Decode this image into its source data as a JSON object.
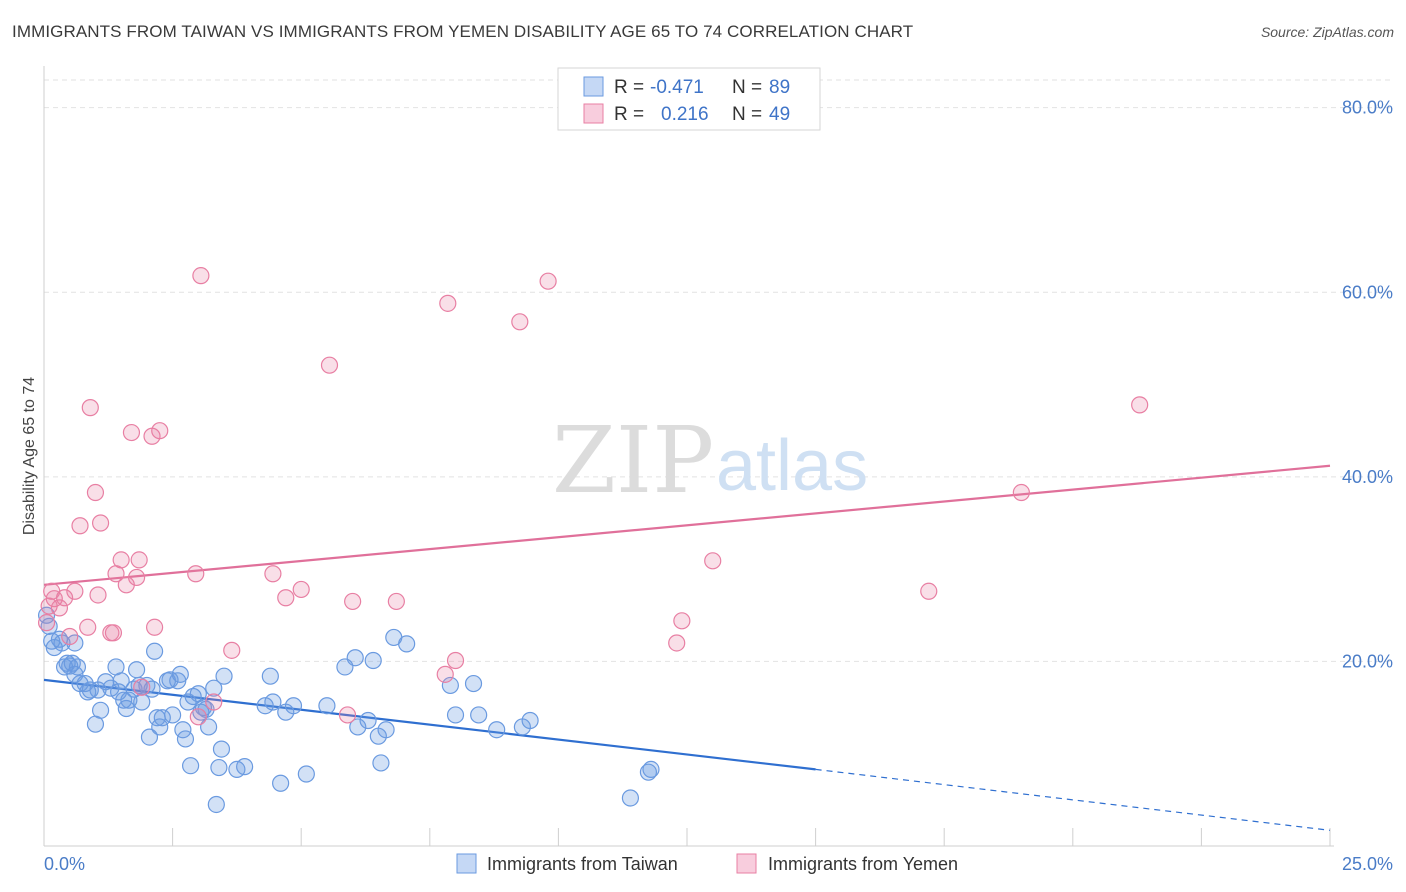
{
  "header": {
    "title": "IMMIGRANTS FROM TAIWAN VS IMMIGRANTS FROM YEMEN DISABILITY AGE 65 TO 74 CORRELATION CHART",
    "source": "Source: ZipAtlas.com"
  },
  "watermark": {
    "zip": "ZIP",
    "atlas": "atlas"
  },
  "legend_top": {
    "rows": [
      {
        "r_label": "R =",
        "r_value": "-0.471",
        "n_label": "N =",
        "n_value": "89",
        "color": "#6a9ae0"
      },
      {
        "r_label": "R =",
        "r_value": "0.216",
        "n_label": "N =",
        "n_value": "49",
        "color": "#e87fa3"
      }
    ]
  },
  "chart_data": {
    "type": "scatter",
    "title": "IMMIGRANTS FROM TAIWAN VS IMMIGRANTS FROM YEMEN DISABILITY AGE 65 TO 74 CORRELATION CHART",
    "xlabel": "",
    "ylabel": "Disability Age 65 to 74",
    "xlim": [
      0,
      25
    ],
    "ylim": [
      0,
      83
    ],
    "x_tick_labels": [
      "0.0%",
      "25.0%"
    ],
    "y_ticks": [
      20,
      40,
      60,
      80
    ],
    "y_tick_labels": [
      "20.0%",
      "40.0%",
      "60.0%",
      "80.0%"
    ],
    "grid": true,
    "legend_position": "bottom",
    "series": [
      {
        "name": "Immigrants from Taiwan",
        "color": "#6a9ae0",
        "line_color": "#2f6fd0",
        "trend": {
          "x": [
            0,
            15
          ],
          "y": [
            18.0,
            8.3
          ],
          "dashed_to": [
            25,
            1.7
          ]
        },
        "points": [
          [
            0.05,
            25.0
          ],
          [
            0.1,
            23.8
          ],
          [
            0.15,
            22.2
          ],
          [
            0.2,
            21.5
          ],
          [
            0.3,
            22.4
          ],
          [
            0.35,
            22.0
          ],
          [
            0.4,
            19.4
          ],
          [
            0.45,
            19.8
          ],
          [
            0.5,
            19.5
          ],
          [
            0.55,
            19.8
          ],
          [
            0.6,
            18.6
          ],
          [
            0.65,
            19.4
          ],
          [
            0.7,
            17.6
          ],
          [
            0.8,
            17.6
          ],
          [
            0.85,
            16.7
          ],
          [
            0.9,
            16.9
          ],
          [
            1.0,
            13.2
          ],
          [
            1.1,
            14.7
          ],
          [
            1.2,
            17.8
          ],
          [
            1.3,
            17.1
          ],
          [
            1.4,
            19.4
          ],
          [
            1.45,
            16.7
          ],
          [
            1.5,
            17.9
          ],
          [
            1.55,
            15.8
          ],
          [
            1.6,
            14.9
          ],
          [
            1.65,
            15.8
          ],
          [
            1.75,
            17.0
          ],
          [
            1.8,
            19.1
          ],
          [
            1.85,
            17.4
          ],
          [
            1.9,
            15.6
          ],
          [
            2.0,
            17.4
          ],
          [
            2.05,
            11.8
          ],
          [
            2.1,
            17.0
          ],
          [
            2.15,
            21.1
          ],
          [
            2.2,
            13.9
          ],
          [
            2.25,
            12.9
          ],
          [
            2.3,
            13.9
          ],
          [
            2.4,
            17.9
          ],
          [
            2.5,
            14.2
          ],
          [
            2.6,
            17.9
          ],
          [
            2.65,
            18.6
          ],
          [
            2.7,
            12.6
          ],
          [
            2.75,
            11.6
          ],
          [
            2.8,
            15.6
          ],
          [
            2.85,
            8.7
          ],
          [
            2.9,
            16.2
          ],
          [
            3.0,
            16.5
          ],
          [
            3.05,
            14.5
          ],
          [
            3.1,
            15.0
          ],
          [
            3.2,
            12.9
          ],
          [
            3.3,
            17.1
          ],
          [
            3.35,
            4.5
          ],
          [
            3.4,
            8.5
          ],
          [
            3.45,
            10.5
          ],
          [
            3.5,
            18.4
          ],
          [
            3.75,
            8.3
          ],
          [
            3.9,
            8.6
          ],
          [
            4.3,
            15.2
          ],
          [
            4.4,
            18.4
          ],
          [
            4.45,
            15.6
          ],
          [
            4.6,
            6.8
          ],
          [
            4.7,
            14.5
          ],
          [
            4.85,
            15.2
          ],
          [
            5.1,
            7.8
          ],
          [
            5.5,
            15.2
          ],
          [
            5.85,
            19.4
          ],
          [
            6.05,
            20.4
          ],
          [
            6.1,
            12.9
          ],
          [
            6.3,
            13.6
          ],
          [
            6.4,
            20.1
          ],
          [
            6.5,
            11.9
          ],
          [
            6.55,
            9.0
          ],
          [
            6.65,
            12.6
          ],
          [
            6.8,
            22.6
          ],
          [
            7.05,
            21.9
          ],
          [
            7.9,
            17.4
          ],
          [
            8.0,
            14.2
          ],
          [
            8.35,
            17.6
          ],
          [
            8.45,
            14.2
          ],
          [
            8.8,
            12.6
          ],
          [
            9.3,
            12.9
          ],
          [
            9.45,
            13.6
          ],
          [
            11.75,
            8.0
          ],
          [
            11.4,
            5.2
          ],
          [
            11.8,
            8.3
          ],
          [
            0.6,
            22.0
          ],
          [
            1.05,
            16.9
          ],
          [
            2.45,
            18.0
          ],
          [
            3.15,
            14.8
          ]
        ]
      },
      {
        "name": "Immigrants from Yemen",
        "color": "#e87fa3",
        "line_color": "#e0709a",
        "trend": {
          "x": [
            0,
            25
          ],
          "y": [
            28.3,
            41.2
          ]
        },
        "points": [
          [
            0.05,
            24.2
          ],
          [
            0.1,
            26.0
          ],
          [
            0.15,
            27.6
          ],
          [
            0.2,
            26.8
          ],
          [
            0.3,
            25.8
          ],
          [
            0.4,
            26.9
          ],
          [
            0.5,
            22.7
          ],
          [
            0.6,
            27.6
          ],
          [
            0.7,
            34.7
          ],
          [
            0.85,
            23.7
          ],
          [
            0.9,
            47.5
          ],
          [
            1.0,
            38.3
          ],
          [
            1.05,
            27.2
          ],
          [
            1.1,
            35.0
          ],
          [
            1.3,
            23.1
          ],
          [
            1.35,
            23.1
          ],
          [
            1.4,
            29.5
          ],
          [
            1.5,
            31.0
          ],
          [
            1.6,
            28.3
          ],
          [
            1.7,
            44.8
          ],
          [
            1.8,
            29.1
          ],
          [
            1.85,
            31.0
          ],
          [
            1.9,
            17.2
          ],
          [
            2.1,
            44.4
          ],
          [
            2.15,
            23.7
          ],
          [
            2.25,
            45.0
          ],
          [
            2.95,
            29.5
          ],
          [
            3.0,
            14.0
          ],
          [
            3.05,
            61.8
          ],
          [
            3.3,
            15.6
          ],
          [
            3.65,
            21.2
          ],
          [
            4.45,
            29.5
          ],
          [
            4.7,
            26.9
          ],
          [
            5.0,
            27.8
          ],
          [
            5.55,
            52.1
          ],
          [
            5.9,
            14.2
          ],
          [
            6.0,
            26.5
          ],
          [
            6.85,
            26.5
          ],
          [
            7.8,
            18.6
          ],
          [
            7.85,
            58.8
          ],
          [
            8.0,
            20.1
          ],
          [
            9.25,
            56.8
          ],
          [
            9.8,
            61.2
          ],
          [
            12.3,
            22.0
          ],
          [
            12.4,
            24.4
          ],
          [
            13.0,
            30.9
          ],
          [
            17.2,
            27.6
          ],
          [
            19.0,
            38.3
          ],
          [
            21.3,
            47.8
          ]
        ]
      }
    ]
  },
  "legend_bottom": {
    "items": [
      {
        "label": "Immigrants from Taiwan",
        "color": "#6a9ae0"
      },
      {
        "label": "Immigrants from Yemen",
        "color": "#e87fa3"
      }
    ]
  }
}
